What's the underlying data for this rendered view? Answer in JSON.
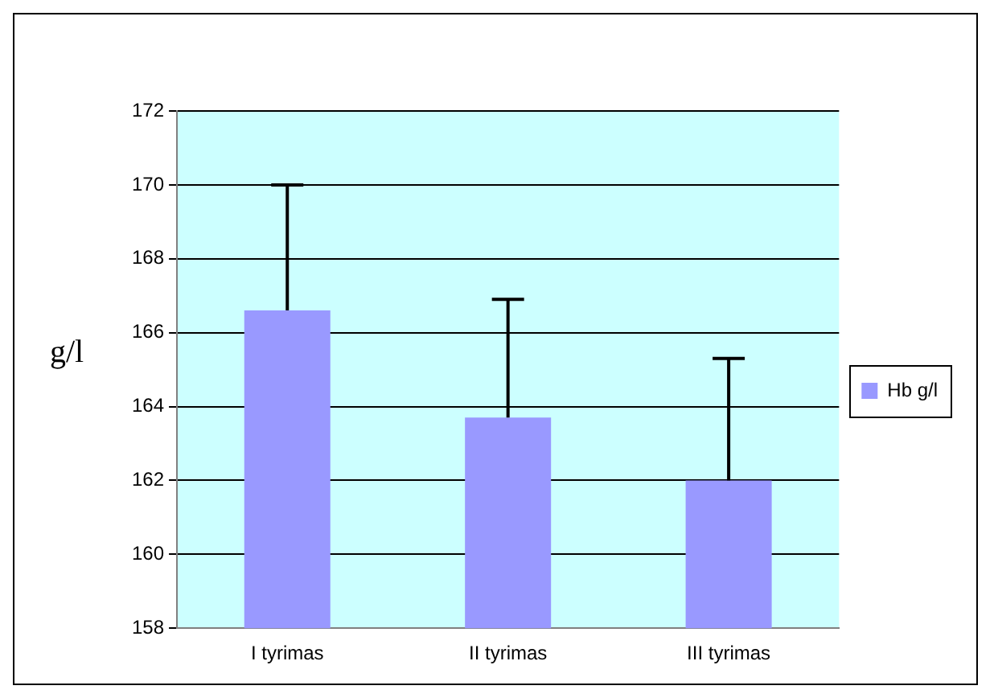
{
  "chart_data": {
    "type": "bar",
    "ylabel": "g/l",
    "categories": [
      "I tyrimas",
      "II tyrimas",
      "III tyrimas"
    ],
    "series": [
      {
        "name": "Hb g/l",
        "color": "#9999ff",
        "values": [
          166.6,
          163.7,
          162.0
        ],
        "errors": [
          [
            166.6,
            170.0
          ],
          [
            163.7,
            166.9
          ],
          [
            162.0,
            165.3
          ]
        ]
      }
    ],
    "ylim": [
      158,
      172
    ],
    "yticks": [
      158,
      160,
      162,
      164,
      166,
      168,
      170,
      172
    ],
    "grid": "y",
    "legend": "right"
  }
}
